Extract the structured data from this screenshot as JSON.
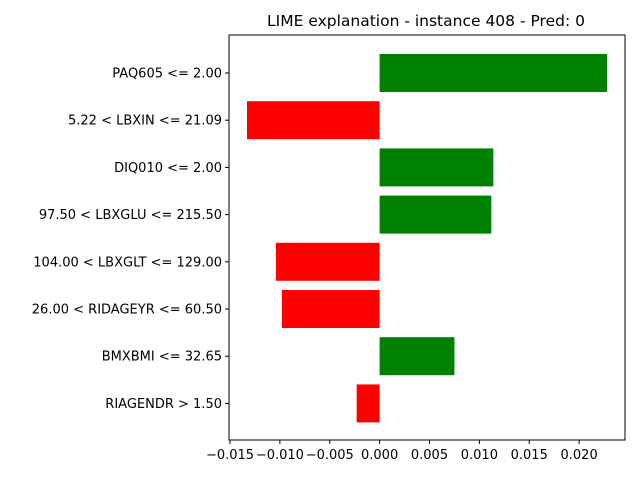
{
  "chart_data": {
    "type": "bar",
    "orientation": "horizontal",
    "title": "LIME explanation - instance 408 - Pred: 0",
    "xlabel": "",
    "ylabel": "",
    "categories": [
      "PAQ605 <= 2.00",
      "5.22 < LBXIN <= 21.09",
      "DIQ010 <= 2.00",
      "97.50 < LBXGLU <= 215.50",
      "104.00 < LBXGLT <= 129.00",
      "26.00 < RIDAGEYR <= 60.50",
      "BMXBMI <= 32.65",
      "RIAGENDR > 1.50"
    ],
    "values": [
      0.0228,
      -0.0133,
      0.0114,
      0.0112,
      -0.0104,
      -0.0098,
      0.0075,
      -0.0023
    ],
    "xlim": [
      -0.0151,
      0.0246
    ],
    "xticks": [
      -0.015,
      -0.01,
      -0.005,
      0.0,
      0.005,
      0.01,
      0.015,
      0.02
    ],
    "xtick_labels": [
      "−0.015",
      "−0.010",
      "−0.005",
      "0.000",
      "0.005",
      "0.010",
      "0.015",
      "0.020"
    ],
    "colors": {
      "positive": "#008000",
      "negative": "#ff0000"
    },
    "grid": false,
    "legend": "none"
  }
}
